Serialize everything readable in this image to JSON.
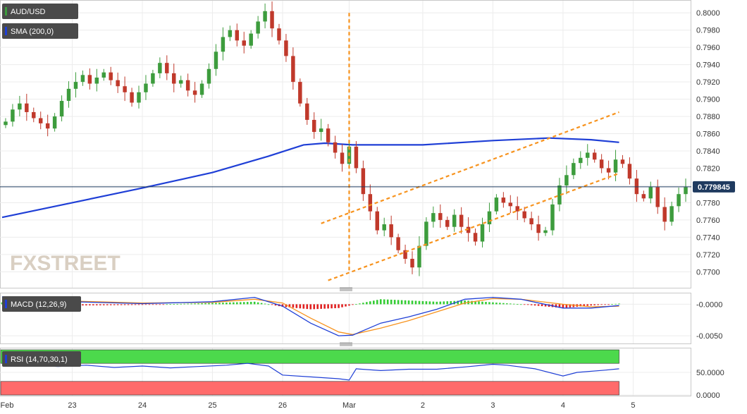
{
  "chart_data": [
    {
      "type": "candlestick",
      "title": "AUD/USD",
      "indicator_label": "SMA (200,0)",
      "watermark": {
        "prefix": "FX",
        "suffix": "STREET"
      },
      "current_price": "0.779845",
      "current_price_value": 0.779845,
      "ylim": [
        0.7688,
        0.801
      ],
      "yticks": [
        "0.8000",
        "0.7980",
        "0.7960",
        "0.7940",
        "0.7920",
        "0.7900",
        "0.7880",
        "0.7860",
        "0.7840",
        "0.7820",
        "0.7800",
        "0.7780",
        "0.7760",
        "0.7740",
        "0.7720",
        "0.7700"
      ],
      "x_labels": [
        "Feb",
        "23",
        "24",
        "25",
        "26",
        "Mar",
        "2",
        "3",
        "4",
        "5"
      ],
      "x_label_pos": [
        0,
        10,
        20,
        30,
        40,
        49.5,
        60,
        70,
        80,
        90
      ],
      "x_range": [
        0,
        98
      ],
      "grid": true,
      "colors": {
        "up": "#3d9c3d",
        "down": "#c0392b",
        "sma": "#1f3fd6",
        "channel": "#f7931e",
        "price_line": "#1f3a5f",
        "price_tag": "#1f3a5f"
      },
      "close": [
        0.7874,
        0.7888,
        0.7895,
        0.7885,
        0.7878,
        0.7872,
        0.7866,
        0.788,
        0.7898,
        0.7912,
        0.792,
        0.7928,
        0.7918,
        0.7925,
        0.7931,
        0.7922,
        0.7915,
        0.7908,
        0.7896,
        0.7908,
        0.7918,
        0.793,
        0.7942,
        0.793,
        0.7918,
        0.7922,
        0.791,
        0.7905,
        0.7918,
        0.7935,
        0.7955,
        0.7972,
        0.798,
        0.7968,
        0.7962,
        0.7976,
        0.799,
        0.8002,
        0.7982,
        0.7968,
        0.795,
        0.792,
        0.7895,
        0.7876,
        0.7862,
        0.7866,
        0.785,
        0.7838,
        0.7825,
        0.7845,
        0.782,
        0.779,
        0.777,
        0.7748,
        0.7755,
        0.774,
        0.7725,
        0.7715,
        0.7705,
        0.773,
        0.7758,
        0.7768,
        0.776,
        0.7752,
        0.7766,
        0.7752,
        0.7745,
        0.7735,
        0.7755,
        0.777,
        0.7786,
        0.778,
        0.7776,
        0.777,
        0.7762,
        0.7755,
        0.7745,
        0.7748,
        0.7778,
        0.78,
        0.7812,
        0.7826,
        0.7832,
        0.7838,
        0.783,
        0.782,
        0.7815,
        0.783,
        0.7825,
        0.7808,
        0.779,
        0.7785,
        0.7798,
        0.7775,
        0.7758,
        0.7776,
        0.779,
        0.7798
      ],
      "open": [
        0.787,
        0.7874,
        0.7888,
        0.7895,
        0.7885,
        0.7878,
        0.7872,
        0.7866,
        0.788,
        0.7898,
        0.7912,
        0.792,
        0.7928,
        0.7918,
        0.7925,
        0.7931,
        0.7922,
        0.7915,
        0.7908,
        0.7896,
        0.7908,
        0.7918,
        0.793,
        0.7942,
        0.793,
        0.7918,
        0.7922,
        0.791,
        0.7905,
        0.7918,
        0.7935,
        0.7955,
        0.7972,
        0.798,
        0.7968,
        0.7962,
        0.7976,
        0.799,
        0.8002,
        0.7982,
        0.7968,
        0.795,
        0.792,
        0.7895,
        0.7876,
        0.7862,
        0.7866,
        0.785,
        0.7838,
        0.7825,
        0.7845,
        0.782,
        0.779,
        0.777,
        0.7748,
        0.7755,
        0.774,
        0.7725,
        0.7715,
        0.7705,
        0.773,
        0.7758,
        0.7768,
        0.776,
        0.7752,
        0.7766,
        0.7752,
        0.7745,
        0.7735,
        0.7755,
        0.777,
        0.7786,
        0.778,
        0.7776,
        0.777,
        0.7762,
        0.7755,
        0.7745,
        0.7748,
        0.7778,
        0.78,
        0.7812,
        0.7826,
        0.7832,
        0.7838,
        0.783,
        0.782,
        0.7815,
        0.783,
        0.7825,
        0.7808,
        0.779,
        0.7785,
        0.7798,
        0.7775,
        0.7758,
        0.7776,
        0.779
      ],
      "sma": [
        [
          0,
          0.7763
        ],
        [
          10,
          0.778
        ],
        [
          20,
          0.7797
        ],
        [
          30,
          0.7815
        ],
        [
          38,
          0.7834
        ],
        [
          43,
          0.7847
        ],
        [
          46,
          0.7849
        ],
        [
          50,
          0.7847
        ],
        [
          60,
          0.7847
        ],
        [
          70,
          0.7852
        ],
        [
          78,
          0.7855
        ],
        [
          84,
          0.7853
        ],
        [
          88,
          0.785
        ]
      ],
      "channel_upper": [
        [
          45.5,
          0.7756
        ],
        [
          88,
          0.7885
        ]
      ],
      "channel_lower": [
        [
          46.5,
          0.769
        ],
        [
          88,
          0.7814
        ]
      ],
      "vertical_marker_x": 49.5
    },
    {
      "type": "line",
      "title": "MACD (12,26,9)",
      "ylim": [
        -0.006,
        0.0015
      ],
      "yticks": [
        "-0.0000",
        "-0.0050"
      ],
      "macd": [
        [
          0,
          0.0012
        ],
        [
          10,
          0.0004
        ],
        [
          20,
          0.0001
        ],
        [
          30,
          0.0004
        ],
        [
          36,
          0.0011
        ],
        [
          40,
          -0.0003
        ],
        [
          44,
          -0.003
        ],
        [
          48,
          -0.005
        ],
        [
          50,
          -0.0049
        ],
        [
          54,
          -0.003
        ],
        [
          58,
          -0.002
        ],
        [
          62,
          -0.0008
        ],
        [
          66,
          0.0008
        ],
        [
          70,
          0.0011
        ],
        [
          74,
          0.0008
        ],
        [
          80,
          -0.0006
        ],
        [
          84,
          -0.0006
        ],
        [
          88,
          -0.0002
        ]
      ],
      "signal": [
        [
          0,
          0.0008
        ],
        [
          10,
          0.0005
        ],
        [
          20,
          0.0002
        ],
        [
          30,
          0.0003
        ],
        [
          36,
          0.0008
        ],
        [
          40,
          0.0002
        ],
        [
          44,
          -0.0022
        ],
        [
          48,
          -0.0044
        ],
        [
          50,
          -0.0048
        ],
        [
          54,
          -0.0038
        ],
        [
          58,
          -0.0026
        ],
        [
          62,
          -0.0012
        ],
        [
          66,
          0.0002
        ],
        [
          70,
          0.0009
        ],
        [
          74,
          0.0008
        ],
        [
          80,
          0.0
        ],
        [
          84,
          -0.0004
        ],
        [
          88,
          -0.0003
        ]
      ],
      "histogram": [
        [
          0,
          0.0003
        ],
        [
          10,
          -0.0002
        ],
        [
          20,
          -0.0001
        ],
        [
          30,
          0.0002
        ],
        [
          36,
          0.0004
        ],
        [
          40,
          -0.0004
        ],
        [
          44,
          -0.0008
        ],
        [
          48,
          -0.0006
        ],
        [
          50,
          -0.0001
        ],
        [
          54,
          0.0008
        ],
        [
          58,
          0.0006
        ],
        [
          62,
          0.0004
        ],
        [
          66,
          0.0006
        ],
        [
          70,
          0.0003
        ],
        [
          74,
          0.0
        ],
        [
          80,
          -0.0006
        ],
        [
          84,
          -0.0002
        ],
        [
          88,
          0.0001
        ]
      ],
      "colors": {
        "macd": "#1f3fd6",
        "signal": "#f7931e",
        "hist_up": "#33cc33",
        "hist_down": "#e02020"
      }
    },
    {
      "type": "line",
      "title": "RSI (14,70,30,1)",
      "ylim": [
        0,
        100
      ],
      "yticks": [
        "50.0000",
        "0.0000"
      ],
      "overbought": 70,
      "oversold": 30,
      "rsi": [
        [
          0,
          70
        ],
        [
          4,
          66
        ],
        [
          8,
          63
        ],
        [
          12,
          66
        ],
        [
          16,
          61
        ],
        [
          20,
          64
        ],
        [
          24,
          60
        ],
        [
          28,
          63
        ],
        [
          32,
          66
        ],
        [
          35,
          70
        ],
        [
          38,
          64
        ],
        [
          40,
          44
        ],
        [
          44,
          40
        ],
        [
          48,
          36
        ],
        [
          49.5,
          33
        ],
        [
          50.5,
          58
        ],
        [
          54,
          54
        ],
        [
          58,
          57
        ],
        [
          62,
          57
        ],
        [
          66,
          62
        ],
        [
          70,
          68
        ],
        [
          72,
          66
        ],
        [
          76,
          58
        ],
        [
          80,
          42
        ],
        [
          82,
          50
        ],
        [
          86,
          55
        ],
        [
          88,
          58
        ]
      ],
      "colors": {
        "rsi": "#1f3fd6",
        "overbought_zone": "#4cd94c",
        "oversold_zone": "#ff6b6b"
      }
    }
  ]
}
